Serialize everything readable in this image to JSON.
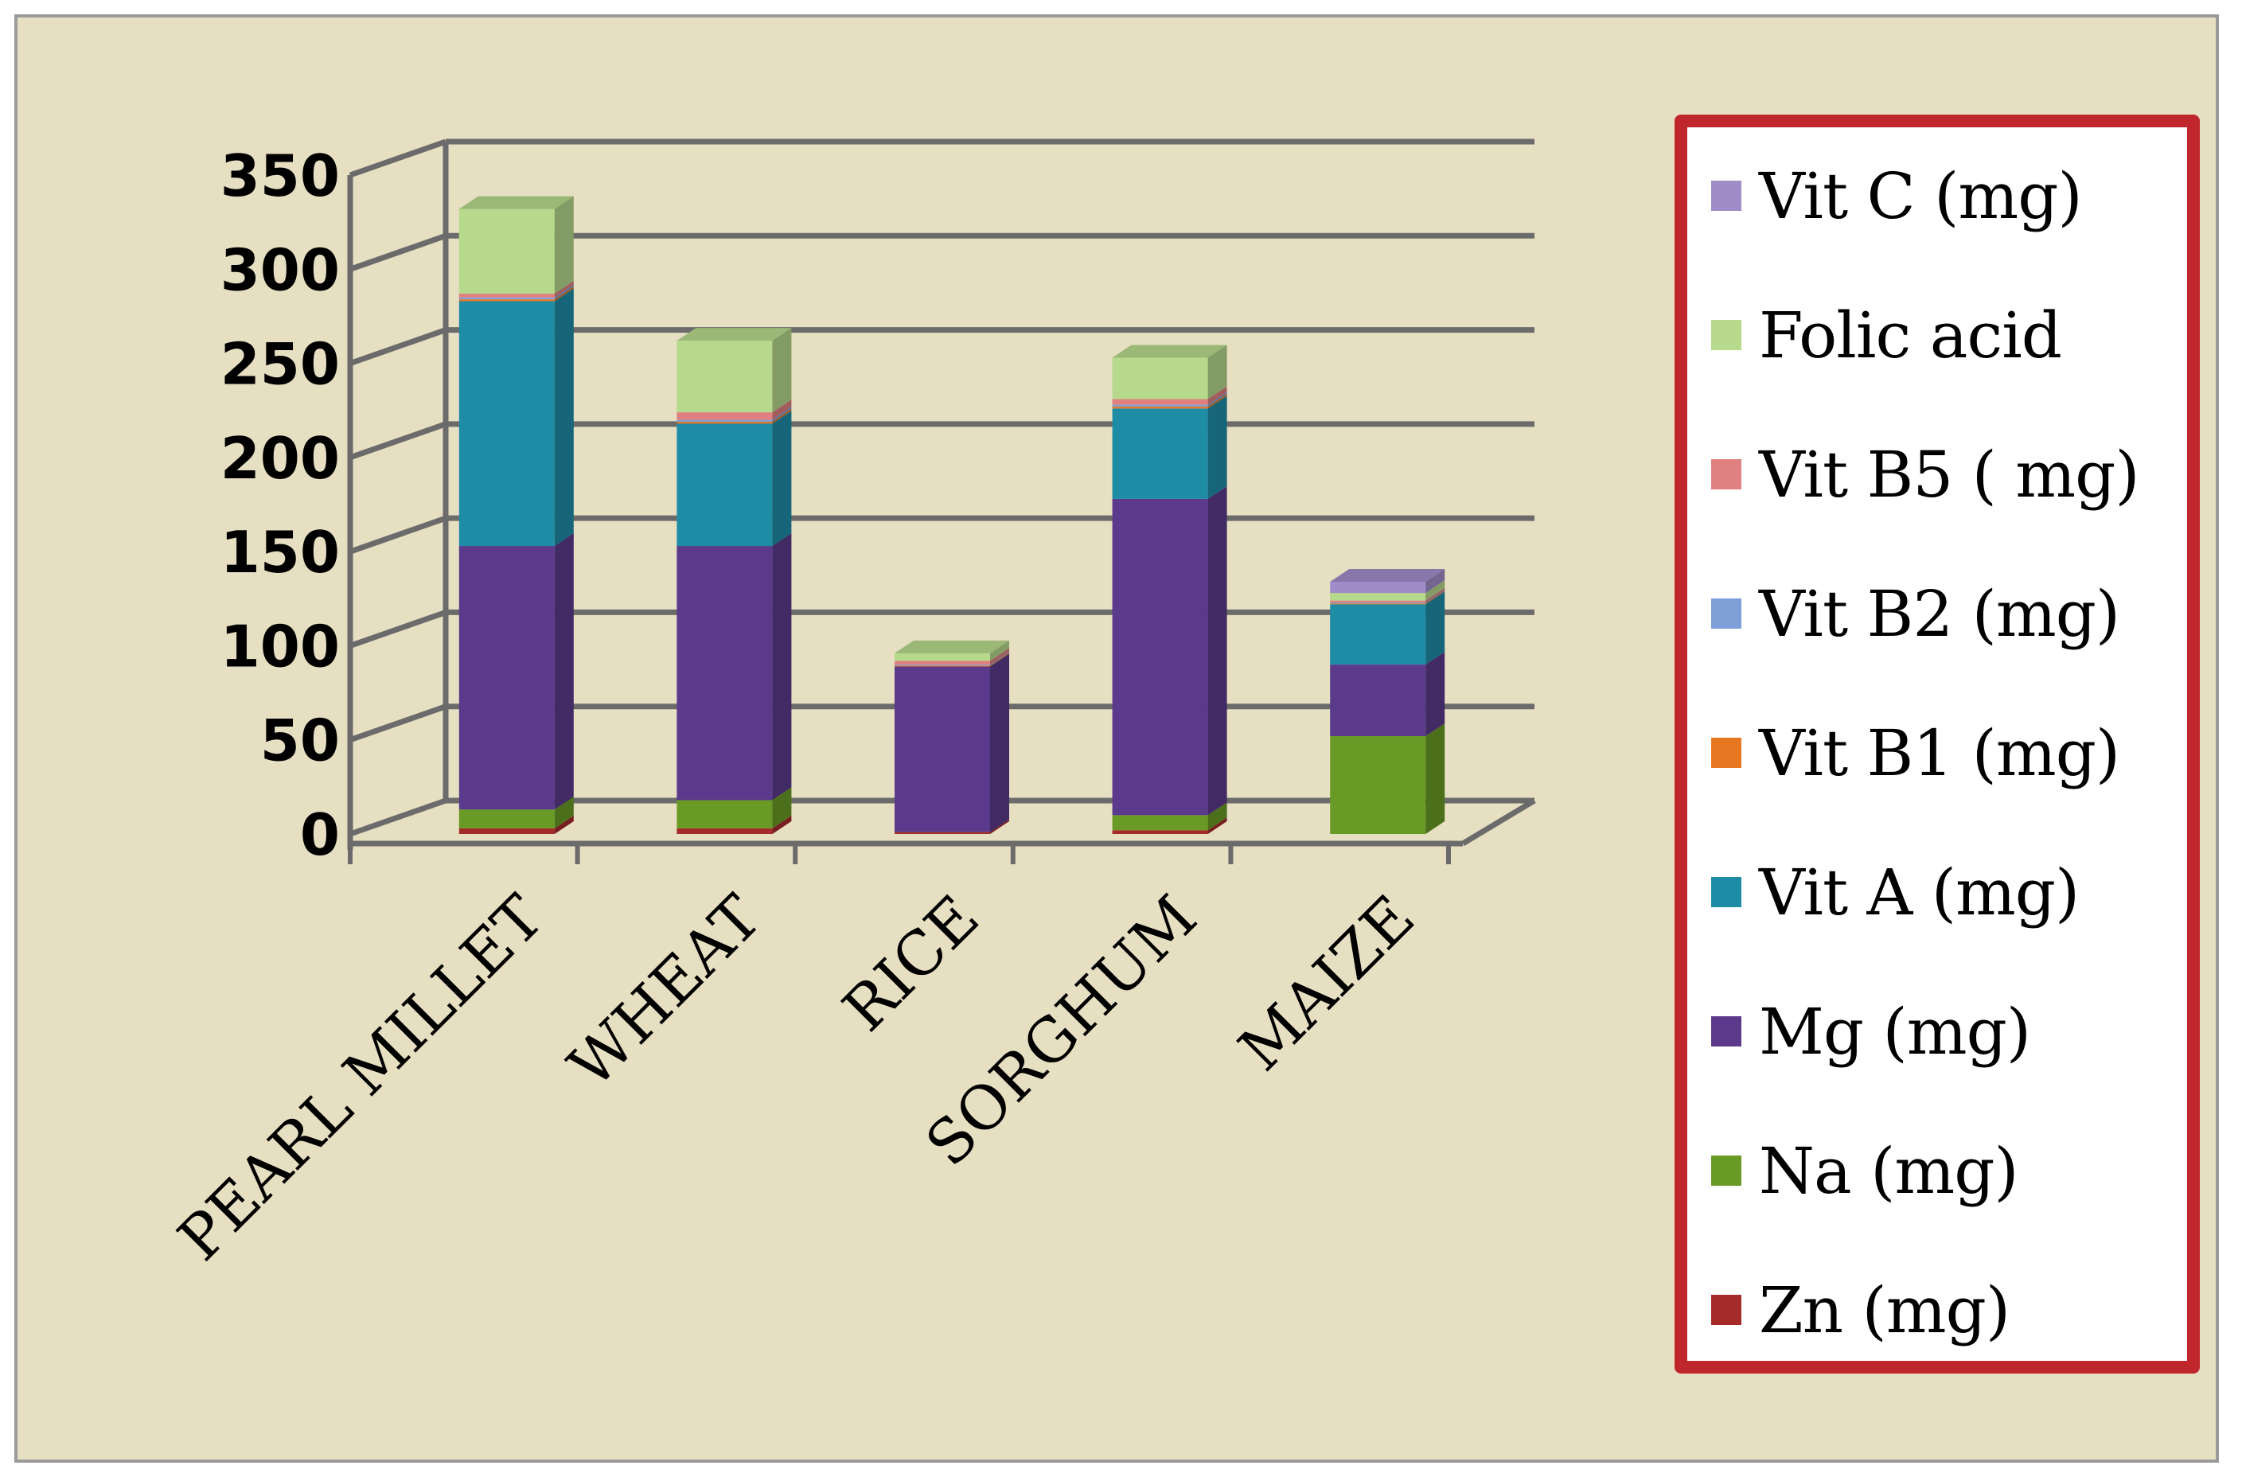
{
  "chart_data": {
    "type": "bar",
    "stacked": true,
    "three_d": true,
    "categories": [
      "PEARL MILLET",
      "WHEAT",
      "RICE",
      "SORGHUM",
      "MAIZE"
    ],
    "ylim": [
      0,
      350
    ],
    "yticks": [
      0,
      50,
      100,
      150,
      200,
      250,
      300,
      350
    ],
    "grid": true,
    "legend_placement": "right",
    "series": [
      {
        "name": "Zn (mg)",
        "color": "#a52a2a",
        "values": [
          3,
          3,
          1,
          2,
          0
        ]
      },
      {
        "name": "Na (mg)",
        "color": "#6a9a26",
        "values": [
          10,
          15,
          0,
          8,
          52
        ]
      },
      {
        "name": "Mg (mg)",
        "color": "#5b3a8c",
        "values": [
          140,
          135,
          88,
          168,
          38
        ]
      },
      {
        "name": "Vit A (mg)",
        "color": "#1f8ca6",
        "values": [
          130,
          65,
          0,
          48,
          32
        ]
      },
      {
        "name": "Vit B1 (mg)",
        "color": "#e87722",
        "values": [
          1,
          1,
          0.5,
          1,
          0.5
        ]
      },
      {
        "name": "Vit B2 (mg)",
        "color": "#7f9fd8",
        "values": [
          1,
          1,
          0.5,
          1,
          0.5
        ]
      },
      {
        "name": "Vit B5 ( mg)",
        "color": "#e08080",
        "values": [
          2,
          4,
          2,
          3,
          1
        ]
      },
      {
        "name": "Folic acid",
        "color": "#b6d98c",
        "values": [
          45,
          38,
          4,
          22,
          4
        ]
      },
      {
        "name": "Vit C (mg)",
        "color": "#a08cc8",
        "values": [
          0,
          0,
          0,
          0,
          6
        ]
      }
    ]
  }
}
